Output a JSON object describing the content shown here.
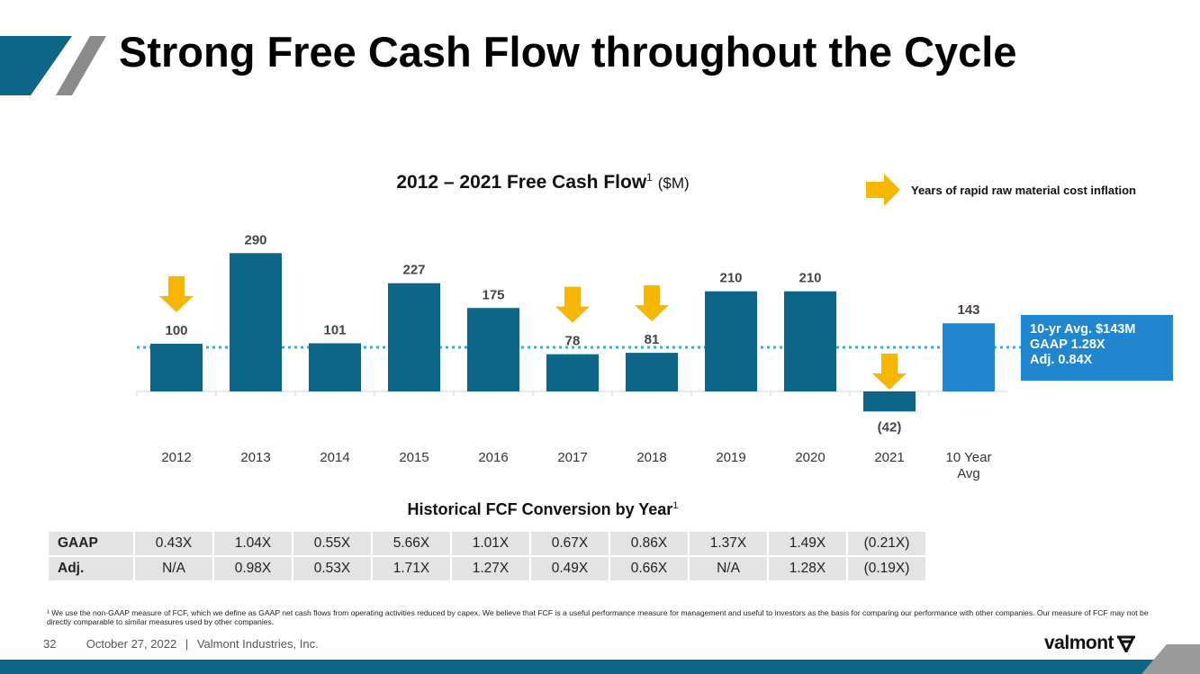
{
  "slide": {
    "title": "Strong Free Cash Flow throughout the Cycle",
    "page_number": "32",
    "date": "October 27, 2022",
    "separator": "|",
    "company": "Valmont Industries, Inc.",
    "logo_text": "valmont",
    "footnote": "¹ We use the non-GAAP measure of FCF, which we define as GAAP net cash flows from operating activities reduced by capex. We believe that FCF is a useful performance measure for management and useful to investors as the basis for comparing our performance with other companies.  Our measure of FCF may not be directly comparable to similar measures used by other companies."
  },
  "colors": {
    "bar": "#0d6688",
    "avg_bar": "#1f86cf",
    "arrow": "#f7b600",
    "avg_line": "#28b4dc",
    "bottom_bar": "#0d6688"
  },
  "legend": {
    "label": "Years of rapid raw material cost inflation",
    "icon": "right-arrow-icon"
  },
  "avg_box": {
    "line1": "10-yr Avg. $143M",
    "line2": "GAAP 1.28X",
    "line3": "Adj. 0.84X"
  },
  "chart_data": {
    "type": "bar",
    "title": "2012 – 2021 Free Cash Flow",
    "title_sup": "1",
    "unit": "($M)",
    "categories": [
      "2012",
      "2013",
      "2014",
      "2015",
      "2016",
      "2017",
      "2018",
      "2019",
      "2020",
      "2021",
      "10 Year Avg"
    ],
    "values": [
      100,
      290,
      101,
      227,
      175,
      78,
      81,
      210,
      210,
      -42,
      143
    ],
    "value_labels": [
      "100",
      "290",
      "101",
      "227",
      "175",
      "78",
      "81",
      "210",
      "210",
      "(42)",
      "143"
    ],
    "inflation_years": [
      "2012",
      "2017",
      "2018",
      "2021"
    ],
    "average_line": 143,
    "ylim": [
      -60,
      320
    ],
    "grid": false
  },
  "conversion_table": {
    "title": "Historical FCF Conversion by Year",
    "title_sup": "1",
    "rows": [
      {
        "label": "GAAP",
        "values": [
          "0.43X",
          "1.04X",
          "0.55X",
          "5.66X",
          "1.01X",
          "0.67X",
          "0.86X",
          "1.37X",
          "1.49X",
          "(0.21X)"
        ]
      },
      {
        "label": "Adj.",
        "values": [
          "N/A",
          "0.98X",
          "0.53X",
          "1.71X",
          "1.27X",
          "0.49X",
          "0.66X",
          "N/A",
          "1.28X",
          "(0.19X)"
        ]
      }
    ]
  }
}
